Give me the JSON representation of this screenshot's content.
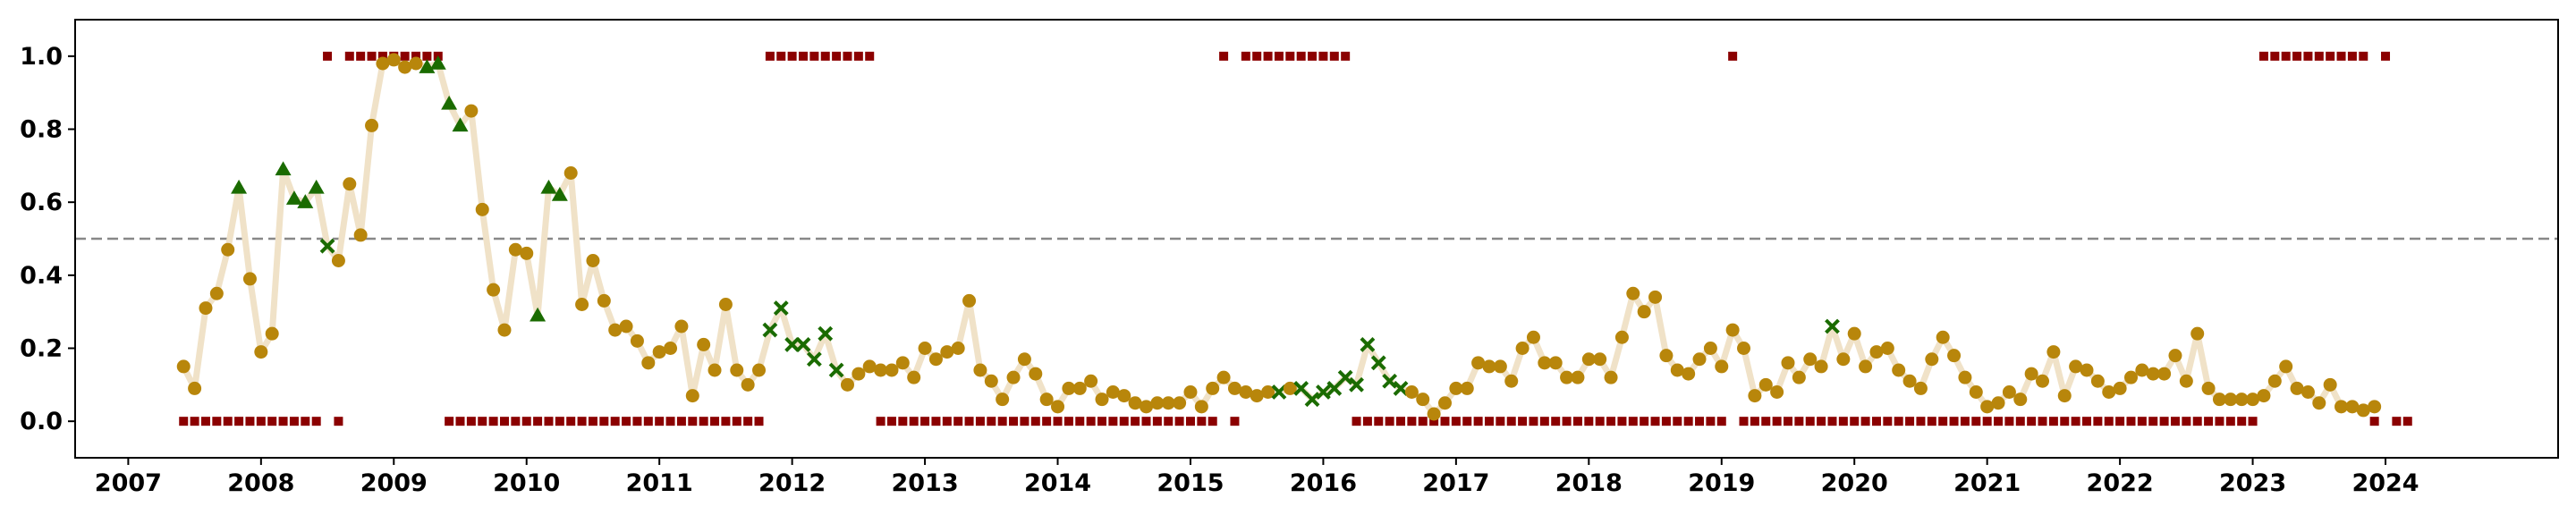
{
  "chart_data": {
    "type": "scatter",
    "title": "",
    "xlabel": "",
    "ylabel": "",
    "xlim": [
      2006.6,
      2025.3
    ],
    "ylim": [
      -0.1,
      1.1
    ],
    "xticks": [
      2007,
      2008,
      2009,
      2010,
      2011,
      2012,
      2013,
      2014,
      2015,
      2016,
      2017,
      2018,
      2019,
      2020,
      2021,
      2022,
      2023,
      2024
    ],
    "xtick_labels": [
      "2007",
      "2008",
      "2009",
      "2010",
      "2011",
      "2012",
      "2013",
      "2014",
      "2015",
      "2016",
      "2017",
      "2018",
      "2019",
      "2020",
      "2021",
      "2022",
      "2023",
      "2024"
    ],
    "yticks": [
      0.0,
      0.2,
      0.4,
      0.6,
      0.8,
      1.0
    ],
    "ytick_labels": [
      "0.0",
      "0.2",
      "0.4",
      "0.6",
      "0.8",
      "1.0"
    ],
    "threshold": 0.5,
    "grid": false,
    "legend": "none",
    "colors": {
      "line": "#f0e2c8",
      "circle": "#b8860b",
      "triangle": "#1a6b00",
      "cross": "#1a6b00",
      "square": "#8b0000",
      "threshold": "#888888"
    },
    "start_year": 2007,
    "start_month": 6,
    "probability_series": {
      "frequency": "monthly",
      "values": [
        0.15,
        0.09,
        0.31,
        0.35,
        0.47,
        0.64,
        0.39,
        0.19,
        0.24,
        0.69,
        0.61,
        0.6,
        0.64,
        0.48,
        0.44,
        0.65,
        0.51,
        0.81,
        0.98,
        0.99,
        0.97,
        0.98,
        0.97,
        0.98,
        0.87,
        0.81,
        0.85,
        0.58,
        0.36,
        0.25,
        0.47,
        0.46,
        0.29,
        0.64,
        0.62,
        0.68,
        0.32,
        0.44,
        0.33,
        0.25,
        0.26,
        0.22,
        0.16,
        0.19,
        0.2,
        0.26,
        0.07,
        0.21,
        0.14,
        0.32,
        0.14,
        0.1,
        0.14,
        0.25,
        0.31,
        0.21,
        0.21,
        0.17,
        0.24,
        0.14,
        0.1,
        0.13,
        0.15,
        0.14,
        0.14,
        0.16,
        0.12,
        0.2,
        0.17,
        0.19,
        0.2,
        0.33,
        0.14,
        0.11,
        0.06,
        0.12,
        0.17,
        0.13,
        0.06,
        0.04,
        0.09,
        0.09,
        0.11,
        0.06,
        0.08,
        0.07,
        0.05,
        0.04,
        0.05,
        0.05,
        0.05,
        0.08,
        0.04,
        0.09,
        0.12,
        0.09,
        0.08,
        0.07,
        0.08,
        0.08,
        0.09,
        0.09,
        0.06,
        0.08,
        0.09,
        0.12,
        0.1,
        0.21,
        0.16,
        0.11,
        0.09,
        0.08,
        0.06,
        0.02,
        0.05,
        0.09,
        0.09,
        0.16,
        0.15,
        0.15,
        0.11,
        0.2,
        0.23,
        0.16,
        0.16,
        0.12,
        0.12,
        0.17,
        0.17,
        0.12,
        0.23,
        0.35,
        0.3,
        0.34,
        0.18,
        0.14,
        0.13,
        0.17,
        0.2,
        0.15,
        0.25,
        0.2,
        0.07,
        0.1,
        0.08,
        0.16,
        0.12,
        0.17,
        0.15,
        0.26,
        0.17,
        0.24,
        0.15,
        0.19,
        0.2,
        0.14,
        0.11,
        0.09,
        0.17,
        0.23,
        0.18,
        0.12,
        0.08,
        0.04,
        0.05,
        0.08,
        0.06,
        0.13,
        0.11,
        0.19,
        0.07,
        0.15,
        0.14,
        0.11,
        0.08,
        0.09,
        0.12,
        0.14,
        0.13,
        0.13,
        0.18,
        0.11,
        0.24,
        0.09,
        0.06,
        0.06,
        0.06,
        0.06,
        0.07,
        0.11,
        0.15,
        0.09,
        0.08,
        0.05,
        0.1,
        0.04,
        0.04,
        0.03,
        0.04
      ],
      "marker_codes": "cccccTcccTTTTxccccccccTTTTccccccTTTccccccccccccccccccxxxxxxxcccccccccccccccccccccccccccccccccccccccxcxxxxxxxxxxccccccccccccccccccccccccccccccccccccccxcccccccccccccccccccccccccccccccccccccccccccccccccxxxxxxxxxxxcxcc",
      "marker_legend": {
        "c": "circle",
        "T": "triangle",
        "x": "cross"
      }
    },
    "indicator_series": {
      "name": "",
      "values": [
        0,
        0,
        0,
        0,
        0,
        0,
        0,
        0,
        0,
        0,
        0,
        0,
        0,
        1,
        0,
        1,
        1,
        1,
        1,
        1,
        1,
        1,
        1,
        1,
        0,
        0,
        0,
        0,
        0,
        0,
        0,
        0,
        0,
        0,
        0,
        0,
        0,
        0,
        0,
        0,
        0,
        0,
        0,
        0,
        0,
        0,
        0,
        0,
        0,
        0,
        0,
        0,
        0,
        1,
        1,
        1,
        1,
        1,
        1,
        1,
        1,
        1,
        1,
        0,
        0,
        0,
        0,
        0,
        0,
        0,
        0,
        0,
        0,
        0,
        0,
        0,
        0,
        0,
        0,
        0,
        0,
        0,
        0,
        0,
        0,
        0,
        0,
        0,
        0,
        0,
        0,
        0,
        0,
        0,
        1,
        0,
        1,
        1,
        1,
        1,
        1,
        1,
        1,
        1,
        1,
        1,
        0,
        0,
        0,
        0,
        0,
        0,
        0,
        0,
        0,
        0,
        0,
        0,
        0,
        0,
        0,
        0,
        0,
        0,
        0,
        0,
        0,
        0,
        0,
        0,
        0,
        0,
        0,
        0,
        0,
        0,
        0,
        0,
        0,
        0,
        1,
        0,
        0,
        0,
        0,
        0,
        0,
        0,
        0,
        0,
        0,
        0,
        0,
        0,
        0,
        0,
        0,
        0,
        0,
        0,
        0,
        0,
        0,
        0,
        0,
        0,
        0,
        0,
        0,
        0,
        0,
        0,
        0,
        0,
        0,
        0,
        0,
        0,
        0,
        0,
        0,
        0,
        0,
        0,
        0,
        0,
        0,
        0,
        1,
        1,
        1,
        1,
        1,
        1,
        1,
        1,
        1,
        1,
        0,
        1,
        0,
        0
      ]
    }
  }
}
